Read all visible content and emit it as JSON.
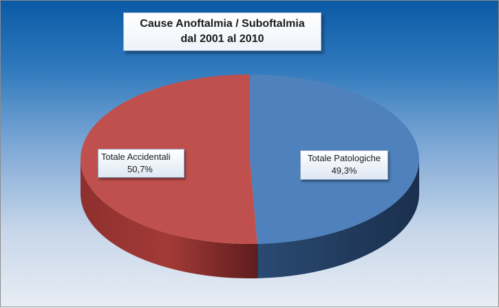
{
  "chart_data": {
    "type": "pie",
    "style": "3d",
    "title": [
      "Cause Anoftalmia  / Suboftalmia",
      "dal 2001 al 2010"
    ],
    "slices": [
      {
        "label": "Totale Patologiche",
        "value": 49.3,
        "value_label": "49,3%",
        "color": "#4f81bd"
      },
      {
        "label": "Totale Accidentali",
        "value": 50.7,
        "value_label": "50,7%",
        "color": "#c0504d"
      }
    ]
  }
}
